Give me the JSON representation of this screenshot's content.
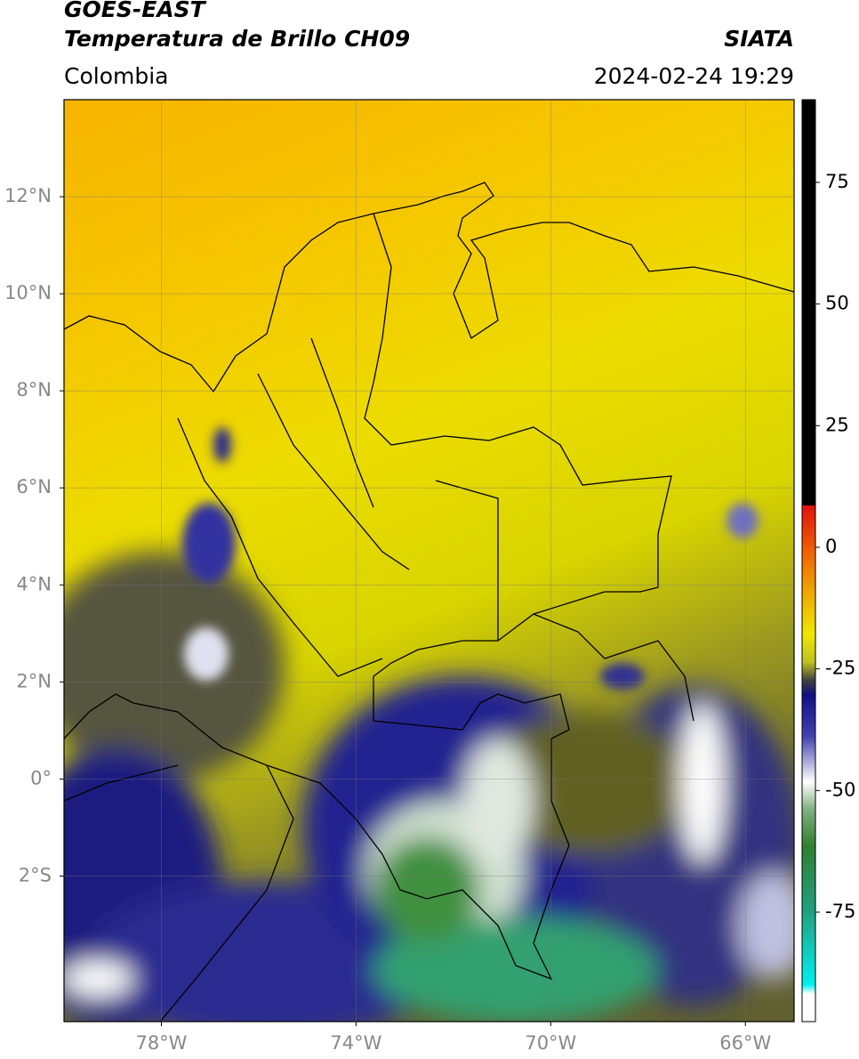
{
  "header": {
    "satellite": "GOES-EAST",
    "title": "Temperatura de Brillo CH09",
    "source": "SIATA",
    "region": "Colombia",
    "datetime": "2024-02-24 19:29"
  },
  "map": {
    "xlim": [
      -80,
      -65
    ],
    "ylim": [
      -5,
      14
    ],
    "xticks": [
      {
        "value": -78,
        "label": "78°W"
      },
      {
        "value": -74,
        "label": "74°W"
      },
      {
        "value": -70,
        "label": "70°W"
      },
      {
        "value": -66,
        "label": "66°W"
      }
    ],
    "yticks": [
      {
        "value": 12,
        "label": "12°N"
      },
      {
        "value": 10,
        "label": "10°N"
      },
      {
        "value": 8,
        "label": "8°N"
      },
      {
        "value": 6,
        "label": "6°N"
      },
      {
        "value": 4,
        "label": "4°N"
      },
      {
        "value": 2,
        "label": "2°N"
      },
      {
        "value": 0,
        "label": "0°"
      },
      {
        "value": -2,
        "label": "2°S"
      }
    ],
    "grid": true
  },
  "colorbar": {
    "lim": [
      -97.5,
      92
    ],
    "ticks": [
      75,
      50,
      25,
      0,
      -25,
      -50,
      -75
    ]
  }
}
